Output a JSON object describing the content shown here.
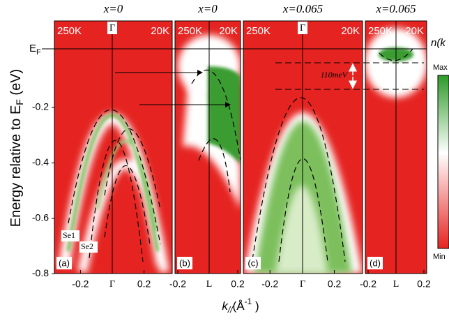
{
  "figure": {
    "y_label": {
      "main": "Energy relative to E",
      "sub": "F",
      "unit": " (eV)"
    },
    "ef_label": {
      "main": "E",
      "sub": "F"
    },
    "yticks": [
      "-0.2",
      "-0.4",
      "-0.6",
      "-0.8"
    ],
    "x_label": {
      "k": "k",
      "sub": "//",
      "unit": "(Å",
      "sup": "-1",
      "close": " )"
    },
    "panels": [
      {
        "title": "x=0",
        "temp_left": "250K",
        "temp_right": "20K",
        "center_label": "Γ",
        "tag": "(a)",
        "xticks": [
          "-0.2",
          "Γ",
          "0.2"
        ],
        "annotations": [
          "Se1",
          "Se2"
        ]
      },
      {
        "title": "x=0",
        "temp_left": "250K",
        "temp_right": "20K",
        "tag": "(b)",
        "xticks": [
          "-0.2",
          "L",
          "0.2"
        ]
      },
      {
        "title": "x=0.065",
        "temp_left": "250K",
        "temp_right": "20K",
        "center_label": "Γ",
        "tag": "(c)",
        "xticks": [
          "-0.2",
          "Γ",
          "0.2"
        ],
        "annotations": [
          "110meV"
        ]
      },
      {
        "title": "x=0.065",
        "temp_left": "250K",
        "temp_right": "20K",
        "tag": "(d)",
        "xticks": [
          "-0.2",
          "L",
          "0.2"
        ]
      }
    ],
    "colorbar": {
      "title": "n(k",
      "max": "Max",
      "min": "Min"
    }
  }
}
